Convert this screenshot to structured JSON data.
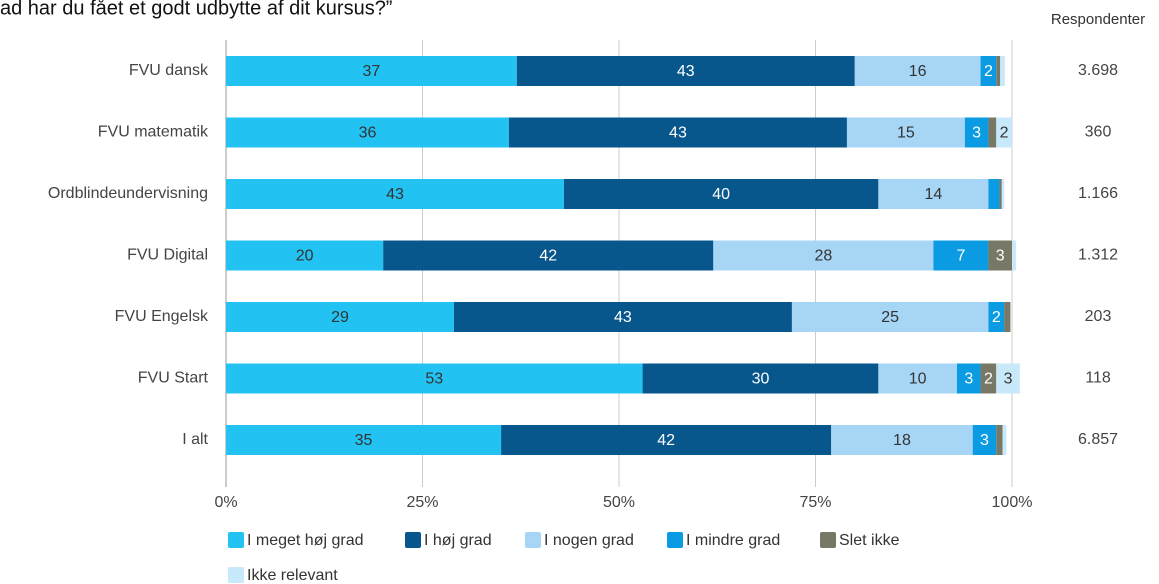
{
  "chart_data": {
    "type": "stacked-bar-horizontal",
    "title": "ad har du fået et godt udbytte af dit kursus?”",
    "respondents_header": "Respondenter",
    "categories": [
      "FVU dansk",
      "FVU matematik",
      "Ordblindeundervisning",
      "FVU Digital",
      "FVU Engelsk",
      "FVU Start",
      "I alt"
    ],
    "respondents": [
      "3.698",
      "360",
      "1.166",
      "1.312",
      "203",
      "118",
      "6.857"
    ],
    "series": [
      {
        "name": "I meget høj grad",
        "color": "#22c3f3",
        "values": [
          37,
          36,
          43,
          20,
          29,
          53,
          35
        ]
      },
      {
        "name": "I høj grad",
        "color": "#07568c",
        "values": [
          43,
          43,
          40,
          42,
          43,
          30,
          42
        ]
      },
      {
        "name": "I nogen grad",
        "color": "#a6d5f6",
        "values": [
          16,
          15,
          14,
          28,
          25,
          10,
          18
        ]
      },
      {
        "name": "I mindre grad",
        "color": "#0a9be2",
        "values": [
          2,
          3,
          1.4,
          7,
          2,
          3,
          3
        ]
      },
      {
        "name": "Slet ikke",
        "color": "#787866",
        "values": [
          0.5,
          1,
          0.3,
          3,
          0.8,
          2,
          0.8
        ]
      },
      {
        "name": "Ikke relevant",
        "color": "#c8e9fa",
        "values": [
          0.6,
          2,
          0.3,
          0.5,
          0,
          3,
          0.5
        ]
      }
    ],
    "xlim": [
      0,
      100
    ],
    "xticks": [
      {
        "value": 0,
        "label": "0%"
      },
      {
        "value": 25,
        "label": "25%"
      },
      {
        "value": 50,
        "label": "50%"
      },
      {
        "value": 75,
        "label": "75%"
      },
      {
        "value": 100,
        "label": "100%"
      }
    ],
    "grid": true
  }
}
